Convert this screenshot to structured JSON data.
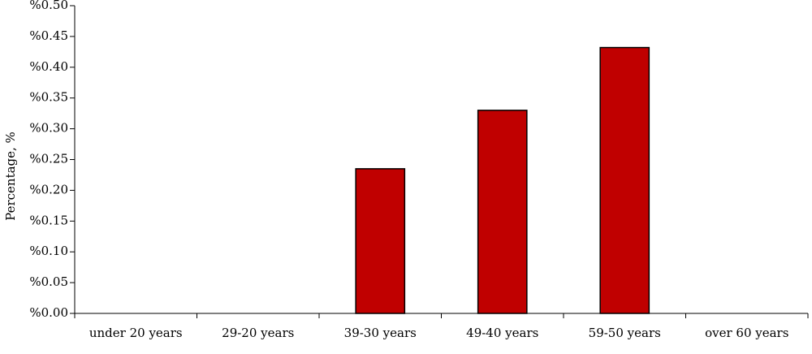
{
  "chart_data": {
    "type": "bar",
    "title": "",
    "xlabel": "",
    "ylabel": "Percentage, %",
    "categories": [
      "under 20 years",
      "29-20 years",
      "39-30 years",
      "49-40 years",
      "59-50 years",
      "over 60 years"
    ],
    "values": [
      0,
      0,
      0.235,
      0.33,
      0.432,
      0
    ],
    "ylim": [
      0,
      0.5
    ],
    "yticks": [
      0,
      0.05,
      0.1,
      0.15,
      0.2,
      0.25,
      0.3,
      0.35,
      0.4,
      0.45,
      0.5
    ],
    "ytick_labels": [
      "%0.00",
      "%0.05",
      "%0.10",
      "%0.15",
      "%0.20",
      "%0.25",
      "%0.30",
      "%0.35",
      "%0.40",
      "%0.45",
      "%0.50"
    ],
    "grid": false,
    "legend": "none",
    "bar_color": "#c00000",
    "bar_edge_color": "#000000"
  }
}
